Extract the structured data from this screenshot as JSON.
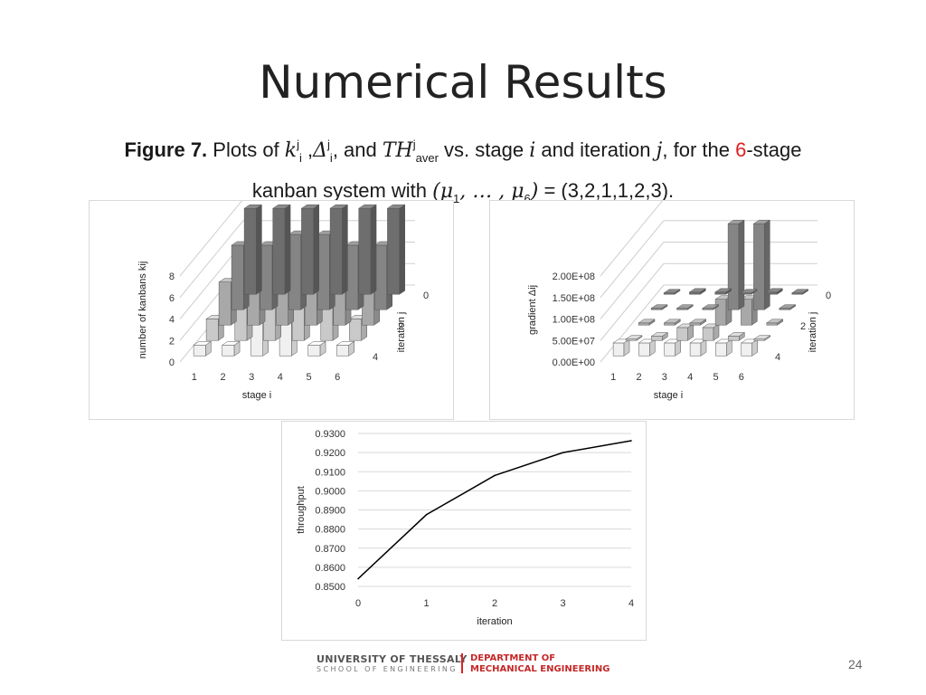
{
  "slide": {
    "title": "Numerical Results",
    "page_number": "24",
    "caption": {
      "fig_label": "Figure 7.",
      "t1": "Plots of ",
      "k": "k",
      "sup_j1": "j",
      "sub_i1": "i",
      "comma": " ,",
      "delta": "Δ",
      "sup_j2": "j",
      "sub_i2": "i",
      "t2": ", and ",
      "th": "TH",
      "sup_j3": "j",
      "sub_aver": "aver",
      "t3": " vs. stage ",
      "i_sym": "i",
      "t4": " and iteration ",
      "j_sym": "j",
      "t5": ", for the ",
      "six": "6",
      "t6": "-stage",
      "line2a": "kanban system with ",
      "mu_open": "(μ",
      "mu_sub1": "1",
      "mu_mid": ", … , μ",
      "mu_sub6": "6",
      "mu_close": ")",
      "line2b": " = (3,2,1,1,2,3)."
    },
    "accent_color": "#e02020",
    "footer": {
      "university": "UNIVERSITY OF THESSALY",
      "school": "SCHOOL OF ENGINEERING",
      "dept_line1": "DEPARTMENT OF",
      "dept_line2": "MECHANICAL ENGINEERING"
    }
  },
  "chart_data": [
    {
      "type": "bar3d",
      "ylabel": "number of kanbans kij",
      "xlabel": "stage i",
      "zlabel": "iteration j",
      "x_ticks": [
        "1",
        "2",
        "3",
        "4",
        "5",
        "6"
      ],
      "y_ticks": [
        "0",
        "2",
        "4",
        "6",
        "8"
      ],
      "z_ticks": [
        "0",
        "2",
        "4"
      ],
      "ylim": [
        0,
        8
      ],
      "iterations": [
        0,
        1,
        2,
        3,
        4
      ],
      "values": [
        [
          8,
          8,
          8,
          8,
          8,
          8
        ],
        [
          6,
          6,
          7,
          7,
          6,
          6
        ],
        [
          4,
          5,
          7,
          7,
          5,
          4
        ],
        [
          2,
          3,
          8,
          8,
          3,
          2
        ],
        [
          1,
          1,
          7,
          7,
          1,
          1
        ]
      ]
    },
    {
      "type": "bar3d",
      "ylabel": "gradient Δij",
      "xlabel": "stage i",
      "zlabel": "iteration j",
      "x_ticks": [
        "1",
        "2",
        "3",
        "4",
        "5",
        "6"
      ],
      "y_ticks": [
        "0.00E+00",
        "5.00E+07",
        "1.00E+08",
        "1.50E+08",
        "2.00E+08"
      ],
      "z_ticks": [
        "0",
        "2",
        "4"
      ],
      "ylim": [
        0,
        200000000
      ],
      "iterations": [
        0,
        1,
        2,
        3,
        4
      ],
      "values": [
        [
          0,
          5000000,
          5000000,
          0,
          5000000,
          0
        ],
        [
          0,
          0,
          0,
          200000000,
          200000000,
          0
        ],
        [
          5000000,
          5000000,
          5000000,
          60000000,
          60000000,
          5000000
        ],
        [
          0,
          10000000,
          30000000,
          30000000,
          10000000,
          0
        ],
        [
          30000000,
          30000000,
          30000000,
          30000000,
          30000000,
          30000000
        ]
      ]
    },
    {
      "type": "line",
      "xlabel": "iteration",
      "ylabel": "throughput",
      "x": [
        0,
        1,
        2,
        3,
        4
      ],
      "y": [
        0.854,
        0.8875,
        0.908,
        0.92,
        0.9262
      ],
      "x_ticks": [
        "0",
        "1",
        "2",
        "3",
        "4"
      ],
      "y_ticks": [
        "0.8500",
        "0.8600",
        "0.8700",
        "0.8800",
        "0.8900",
        "0.9000",
        "0.9100",
        "0.9200",
        "0.9300"
      ],
      "ylim": [
        0.85,
        0.93
      ],
      "grid": true,
      "line_color": "#000000"
    }
  ]
}
